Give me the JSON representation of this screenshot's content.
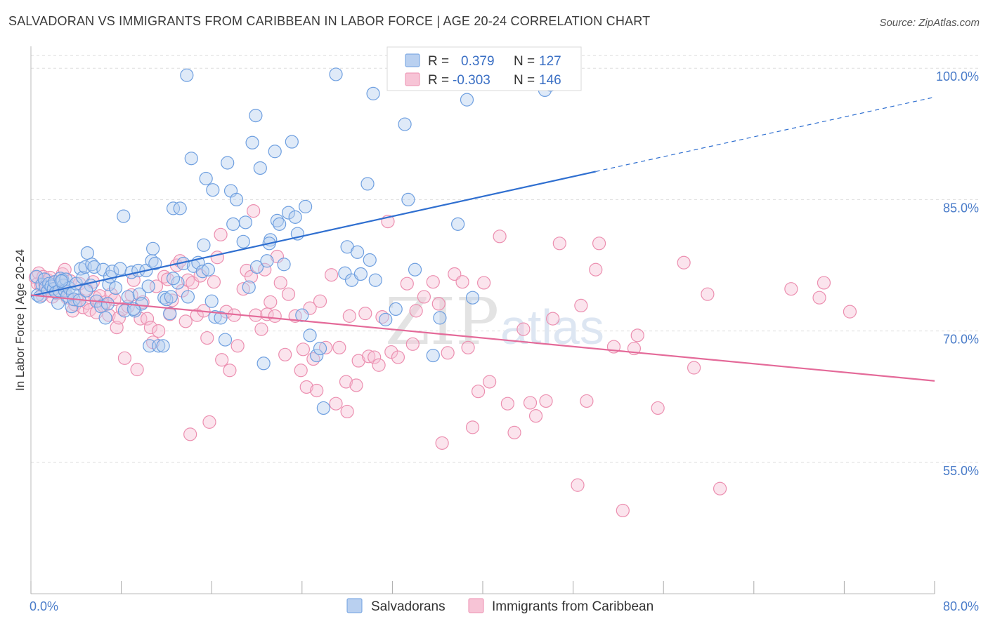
{
  "title": "SALVADORAN VS IMMIGRANTS FROM CARIBBEAN IN LABOR FORCE | AGE 20-24 CORRELATION CHART",
  "source": "Source: ZipAtlas.com",
  "watermark": {
    "zip": "ZIP",
    "atlas": "atlas"
  },
  "legend": {
    "rows": [
      {
        "r_label": "R =",
        "r_value": "0.379",
        "n_label": "N =",
        "n_value": "127",
        "color": "#6e9fe0"
      },
      {
        "r_label": "R =",
        "r_value": "-0.303",
        "n_label": "N =",
        "n_value": "146",
        "color": "#ec8fb0"
      }
    ]
  },
  "colors": {
    "blue_fill": "#b9d0f0",
    "blue_stroke": "#6e9fe0",
    "blue_line": "#2f6fd0",
    "pink_fill": "#f7c4d6",
    "pink_stroke": "#ec8fb0",
    "pink_line": "#e46a99",
    "grid": "#dddddd",
    "tick_label": "#4a7cc9"
  },
  "chart_data": {
    "type": "scatter",
    "title": "SALVADORAN VS IMMIGRANTS FROM CARIBBEAN IN LABOR FORCE | AGE 20-24 CORRELATION CHART",
    "xlabel": "",
    "ylabel": "In Labor Force | Age 20-24",
    "xlim": [
      0,
      80
    ],
    "ylim": [
      40,
      102.5
    ],
    "x_tick_labels": [
      "0.0%",
      "80.0%"
    ],
    "y_ticks": [
      55,
      70,
      85,
      100
    ],
    "y_tick_labels": [
      "55.0%",
      "70.0%",
      "85.0%",
      "100.0%"
    ],
    "grid": true,
    "legend_position": "top-center",
    "series": [
      {
        "name": "Salvadorans",
        "trend": {
          "x0": 0,
          "y0": 74.0,
          "x1": 50,
          "y1": 88.2,
          "dashed_to_x": 80,
          "dashed_to_y": 96.7
        },
        "points": [
          [
            0.5,
            76.2
          ],
          [
            0.6,
            74.1
          ],
          [
            0.8,
            73.9
          ],
          [
            1.0,
            75.3
          ],
          [
            1.2,
            75.9
          ],
          [
            1.3,
            75.0
          ],
          [
            1.5,
            74.6
          ],
          [
            1.6,
            75.4
          ],
          [
            1.8,
            75.1
          ],
          [
            2.0,
            74.8
          ],
          [
            2.1,
            75.6
          ],
          [
            2.2,
            74.4
          ],
          [
            2.4,
            73.2
          ],
          [
            2.5,
            74.6
          ],
          [
            2.6,
            76.0
          ],
          [
            2.8,
            75.8
          ],
          [
            2.9,
            75.2
          ],
          [
            3.0,
            74.6
          ],
          [
            3.1,
            75.9
          ],
          [
            3.2,
            74.0
          ],
          [
            3.4,
            74.9
          ],
          [
            3.6,
            72.8
          ],
          [
            3.7,
            74.3
          ],
          [
            3.8,
            73.6
          ],
          [
            4.0,
            75.4
          ],
          [
            4.3,
            73.5
          ],
          [
            4.4,
            77.1
          ],
          [
            4.6,
            76.1
          ],
          [
            4.8,
            77.3
          ],
          [
            5.0,
            78.9
          ],
          [
            5.3,
            75.2
          ],
          [
            5.4,
            77.6
          ],
          [
            5.6,
            77.3
          ],
          [
            5.8,
            73.4
          ],
          [
            6.2,
            72.8
          ],
          [
            6.4,
            77.0
          ],
          [
            6.6,
            71.5
          ],
          [
            6.9,
            75.3
          ],
          [
            7.0,
            76.2
          ],
          [
            7.2,
            76.8
          ],
          [
            7.5,
            74.9
          ],
          [
            7.9,
            77.1
          ],
          [
            8.2,
            83.1
          ],
          [
            8.3,
            72.3
          ],
          [
            8.6,
            73.9
          ],
          [
            8.9,
            76.7
          ],
          [
            9.2,
            72.3
          ],
          [
            9.5,
            76.9
          ],
          [
            9.6,
            74.2
          ],
          [
            9.8,
            73.1
          ],
          [
            10.2,
            76.9
          ],
          [
            10.4,
            75.1
          ],
          [
            10.5,
            68.3
          ],
          [
            10.7,
            78.0
          ],
          [
            10.8,
            79.4
          ],
          [
            11.0,
            77.7
          ],
          [
            11.3,
            68.3
          ],
          [
            11.7,
            68.3
          ],
          [
            11.8,
            73.8
          ],
          [
            12.0,
            73.6
          ],
          [
            12.3,
            72.0
          ],
          [
            12.4,
            73.9
          ],
          [
            12.6,
            84.0
          ],
          [
            13.0,
            75.5
          ],
          [
            13.2,
            84.0
          ],
          [
            13.5,
            77.7
          ],
          [
            13.8,
            99.2
          ],
          [
            13.9,
            73.9
          ],
          [
            14.2,
            89.7
          ],
          [
            14.4,
            77.4
          ],
          [
            14.8,
            77.8
          ],
          [
            15.2,
            76.8
          ],
          [
            15.3,
            79.8
          ],
          [
            15.5,
            87.4
          ],
          [
            15.7,
            77.0
          ],
          [
            16.1,
            86.1
          ],
          [
            16.3,
            71.6
          ],
          [
            16.8,
            71.5
          ],
          [
            17.2,
            69.0
          ],
          [
            17.4,
            89.2
          ],
          [
            17.7,
            86.0
          ],
          [
            17.9,
            82.2
          ],
          [
            18.2,
            85.0
          ],
          [
            18.8,
            80.2
          ],
          [
            19.0,
            82.4
          ],
          [
            19.3,
            75.0
          ],
          [
            19.6,
            91.5
          ],
          [
            19.9,
            94.6
          ],
          [
            20.0,
            77.3
          ],
          [
            20.3,
            88.6
          ],
          [
            20.6,
            66.3
          ],
          [
            20.9,
            78.0
          ],
          [
            21.2,
            80.4
          ],
          [
            21.6,
            90.5
          ],
          [
            21.8,
            82.6
          ],
          [
            22.0,
            82.2
          ],
          [
            22.4,
            77.6
          ],
          [
            22.8,
            83.5
          ],
          [
            23.1,
            91.6
          ],
          [
            23.4,
            83.0
          ],
          [
            23.6,
            81.1
          ],
          [
            24.0,
            71.8
          ],
          [
            24.3,
            84.2
          ],
          [
            24.7,
            69.5
          ],
          [
            25.3,
            67.2
          ],
          [
            25.6,
            68.0
          ],
          [
            25.9,
            61.2
          ],
          [
            27.0,
            99.3
          ],
          [
            27.8,
            76.6
          ],
          [
            28.0,
            79.6
          ],
          [
            28.4,
            75.8
          ],
          [
            28.9,
            79.0
          ],
          [
            29.2,
            76.5
          ],
          [
            29.8,
            86.8
          ],
          [
            30.0,
            78.1
          ],
          [
            30.3,
            97.1
          ],
          [
            30.5,
            75.8
          ],
          [
            31.4,
            71.3
          ],
          [
            32.3,
            72.5
          ],
          [
            33.1,
            93.6
          ],
          [
            33.4,
            85.0
          ],
          [
            34.0,
            77.0
          ],
          [
            35.6,
            67.2
          ],
          [
            36.2,
            71.5
          ],
          [
            37.8,
            82.2
          ],
          [
            38.6,
            96.4
          ],
          [
            39.1,
            73.8
          ],
          [
            40.9,
            99.3
          ],
          [
            45.5,
            97.5
          ],
          [
            46.0,
            98.1
          ],
          [
            2.7,
            75.7
          ],
          [
            4.9,
            74.6
          ],
          [
            6.8,
            73.1
          ],
          [
            9.1,
            72.5
          ],
          [
            12.6,
            76.0
          ],
          [
            16.0,
            73.4
          ],
          [
            21.1,
            80.0
          ]
        ]
      },
      {
        "name": "Immigrants from Caribbean",
        "trend": {
          "x0": 0,
          "y0": 74.1,
          "x1": 80,
          "y1": 64.3
        },
        "points": [
          [
            0.4,
            76.1
          ],
          [
            0.6,
            75.4
          ],
          [
            0.7,
            76.6
          ],
          [
            0.9,
            75.2
          ],
          [
            1.0,
            74.1
          ],
          [
            1.1,
            76.2
          ],
          [
            1.2,
            75.5
          ],
          [
            1.4,
            74.9
          ],
          [
            1.5,
            75.8
          ],
          [
            1.7,
            76.1
          ],
          [
            1.9,
            73.9
          ],
          [
            2.1,
            75.3
          ],
          [
            2.2,
            75.6
          ],
          [
            2.3,
            74.3
          ],
          [
            2.6,
            74.5
          ],
          [
            2.8,
            76.5
          ],
          [
            3.0,
            77.0
          ],
          [
            3.2,
            73.8
          ],
          [
            3.5,
            75.7
          ],
          [
            3.7,
            72.3
          ],
          [
            3.9,
            73.0
          ],
          [
            4.1,
            73.5
          ],
          [
            4.3,
            75.4
          ],
          [
            4.6,
            72.7
          ],
          [
            4.9,
            74.8
          ],
          [
            5.0,
            73.2
          ],
          [
            5.2,
            72.4
          ],
          [
            5.5,
            75.6
          ],
          [
            5.7,
            73.8
          ],
          [
            5.8,
            72.1
          ],
          [
            6.1,
            74.0
          ],
          [
            6.4,
            72.9
          ],
          [
            6.6,
            73.3
          ],
          [
            6.9,
            71.8
          ],
          [
            7.1,
            74.2
          ],
          [
            7.4,
            73.6
          ],
          [
            7.6,
            70.4
          ],
          [
            7.8,
            71.5
          ],
          [
            8.1,
            72.5
          ],
          [
            8.3,
            66.9
          ],
          [
            8.6,
            72.8
          ],
          [
            8.9,
            74.1
          ],
          [
            9.1,
            75.8
          ],
          [
            9.4,
            65.6
          ],
          [
            9.7,
            71.4
          ],
          [
            9.9,
            73.3
          ],
          [
            10.3,
            71.4
          ],
          [
            10.6,
            70.4
          ],
          [
            10.8,
            68.7
          ],
          [
            11.1,
            75.1
          ],
          [
            11.3,
            70.0
          ],
          [
            11.8,
            76.2
          ],
          [
            12.1,
            75.9
          ],
          [
            12.3,
            71.9
          ],
          [
            12.5,
            73.5
          ],
          [
            12.9,
            77.5
          ],
          [
            13.2,
            78.0
          ],
          [
            13.4,
            74.6
          ],
          [
            13.7,
            71.1
          ],
          [
            13.9,
            75.8
          ],
          [
            14.1,
            58.2
          ],
          [
            14.3,
            75.5
          ],
          [
            14.7,
            71.8
          ],
          [
            15.0,
            76.3
          ],
          [
            15.3,
            72.3
          ],
          [
            15.6,
            69.2
          ],
          [
            15.8,
            59.6
          ],
          [
            16.2,
            75.6
          ],
          [
            16.5,
            78.4
          ],
          [
            16.8,
            81.0
          ],
          [
            16.9,
            66.7
          ],
          [
            17.3,
            72.2
          ],
          [
            17.6,
            65.5
          ],
          [
            18.0,
            71.8
          ],
          [
            18.3,
            68.3
          ],
          [
            18.8,
            74.8
          ],
          [
            19.1,
            76.9
          ],
          [
            19.5,
            76.2
          ],
          [
            19.9,
            71.8
          ],
          [
            20.4,
            70.2
          ],
          [
            20.7,
            77.0
          ],
          [
            20.9,
            71.9
          ],
          [
            21.2,
            73.3
          ],
          [
            21.6,
            71.7
          ],
          [
            21.8,
            78.5
          ],
          [
            22.1,
            75.5
          ],
          [
            22.5,
            67.3
          ],
          [
            22.8,
            74.2
          ],
          [
            23.4,
            71.7
          ],
          [
            23.9,
            65.5
          ],
          [
            24.1,
            67.9
          ],
          [
            24.4,
            63.6
          ],
          [
            24.7,
            72.6
          ],
          [
            25.0,
            66.8
          ],
          [
            25.3,
            63.2
          ],
          [
            25.6,
            73.4
          ],
          [
            26.1,
            68.1
          ],
          [
            26.6,
            76.4
          ],
          [
            27.0,
            61.7
          ],
          [
            27.3,
            68.1
          ],
          [
            27.9,
            64.2
          ],
          [
            28.2,
            71.7
          ],
          [
            28.8,
            63.8
          ],
          [
            29.0,
            66.6
          ],
          [
            29.6,
            72.0
          ],
          [
            29.9,
            67.1
          ],
          [
            30.4,
            67.0
          ],
          [
            30.8,
            66.1
          ],
          [
            31.1,
            71.6
          ],
          [
            31.6,
            82.5
          ],
          [
            31.9,
            67.6
          ],
          [
            32.5,
            67.0
          ],
          [
            33.3,
            75.4
          ],
          [
            33.8,
            68.5
          ],
          [
            34.1,
            72.3
          ],
          [
            34.8,
            73.9
          ],
          [
            35.6,
            75.6
          ],
          [
            36.1,
            73.1
          ],
          [
            36.4,
            57.2
          ],
          [
            36.9,
            67.5
          ],
          [
            37.5,
            76.5
          ],
          [
            38.2,
            75.6
          ],
          [
            38.7,
            68.1
          ],
          [
            39.1,
            59.0
          ],
          [
            39.6,
            63.1
          ],
          [
            40.1,
            75.5
          ],
          [
            40.6,
            64.2
          ],
          [
            41.5,
            80.8
          ],
          [
            42.2,
            61.7
          ],
          [
            42.8,
            58.4
          ],
          [
            43.6,
            70.2
          ],
          [
            44.2,
            61.8
          ],
          [
            44.7,
            60.3
          ],
          [
            45.6,
            62.0
          ],
          [
            46.2,
            71.4
          ],
          [
            46.8,
            80.0
          ],
          [
            48.4,
            52.4
          ],
          [
            48.7,
            72.9
          ],
          [
            49.2,
            62.0
          ],
          [
            50.0,
            77.0
          ],
          [
            50.3,
            80.0
          ],
          [
            51.6,
            68.2
          ],
          [
            52.4,
            49.5
          ],
          [
            53.4,
            68.0
          ],
          [
            53.7,
            69.5
          ],
          [
            55.5,
            61.2
          ],
          [
            57.8,
            77.8
          ],
          [
            58.7,
            65.8
          ],
          [
            59.9,
            74.2
          ],
          [
            61.0,
            52.0
          ],
          [
            67.3,
            74.8
          ],
          [
            69.8,
            73.8
          ],
          [
            70.2,
            75.5
          ],
          [
            72.5,
            72.2
          ],
          [
            28.0,
            60.8
          ],
          [
            19.7,
            83.7
          ]
        ]
      }
    ]
  },
  "bottom_legend": [
    {
      "label": "Salvadorans",
      "color": "blue"
    },
    {
      "label": "Immigrants from Caribbean",
      "color": "pink"
    }
  ]
}
